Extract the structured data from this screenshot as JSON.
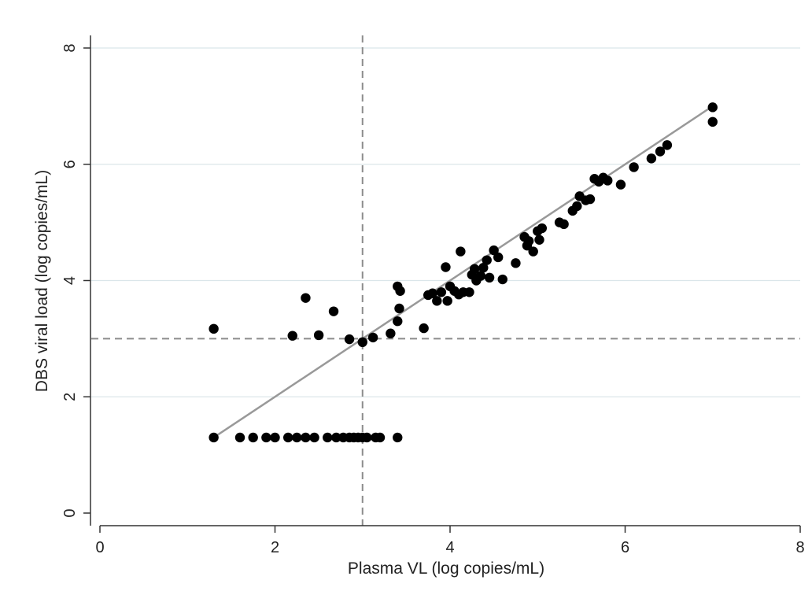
{
  "chart_data": {
    "type": "scatter",
    "xlabel": "Plasma VL (log copies/mL)",
    "ylabel": "DBS viral load (log copies/mL)",
    "xlim": [
      0,
      8
    ],
    "ylim": [
      0,
      8
    ],
    "xticks": [
      "0",
      "2",
      "4",
      "6",
      "8"
    ],
    "yticks": [
      "0",
      "2",
      "4",
      "6",
      "8"
    ],
    "grid": "horizontal",
    "reference_lines": {
      "x": 3,
      "y": 3,
      "style": "dashed"
    },
    "fit_line": {
      "from": [
        1.3,
        1.3
      ],
      "to": [
        7.0,
        7.0
      ]
    },
    "colors": {
      "points": "#000000",
      "fit": "#999999",
      "reference": "#8c8c8c",
      "grid": "#dbe6ea",
      "axis": "#333333"
    },
    "points": [
      [
        1.3,
        3.17
      ],
      [
        1.3,
        1.3
      ],
      [
        1.6,
        1.3
      ],
      [
        1.75,
        1.3
      ],
      [
        1.9,
        1.3
      ],
      [
        2.0,
        1.3
      ],
      [
        2.15,
        1.3
      ],
      [
        2.25,
        1.3
      ],
      [
        2.35,
        1.3
      ],
      [
        2.45,
        1.3
      ],
      [
        2.6,
        1.3
      ],
      [
        2.7,
        1.3
      ],
      [
        2.78,
        1.3
      ],
      [
        2.85,
        1.3
      ],
      [
        2.9,
        1.3
      ],
      [
        2.95,
        1.3
      ],
      [
        3.0,
        1.3
      ],
      [
        3.05,
        1.3
      ],
      [
        3.15,
        1.3
      ],
      [
        3.2,
        1.3
      ],
      [
        3.4,
        1.3
      ],
      [
        2.2,
        3.05
      ],
      [
        2.35,
        3.7
      ],
      [
        2.5,
        3.06
      ],
      [
        2.67,
        3.47
      ],
      [
        2.85,
        2.99
      ],
      [
        3.0,
        2.94
      ],
      [
        3.12,
        3.02
      ],
      [
        3.32,
        3.09
      ],
      [
        3.4,
        3.3
      ],
      [
        3.42,
        3.52
      ],
      [
        3.4,
        3.9
      ],
      [
        3.43,
        3.82
      ],
      [
        3.7,
        3.18
      ],
      [
        3.75,
        3.75
      ],
      [
        3.8,
        3.78
      ],
      [
        3.85,
        3.65
      ],
      [
        3.9,
        3.8
      ],
      [
        3.95,
        4.23
      ],
      [
        3.97,
        3.65
      ],
      [
        4.0,
        3.9
      ],
      [
        4.05,
        3.82
      ],
      [
        4.1,
        3.76
      ],
      [
        4.12,
        4.5
      ],
      [
        4.15,
        3.8
      ],
      [
        4.22,
        3.8
      ],
      [
        4.25,
        4.1
      ],
      [
        4.28,
        4.2
      ],
      [
        4.3,
        4.0
      ],
      [
        4.35,
        4.08
      ],
      [
        4.38,
        4.22
      ],
      [
        4.42,
        4.35
      ],
      [
        4.45,
        4.05
      ],
      [
        4.5,
        4.52
      ],
      [
        4.55,
        4.4
      ],
      [
        4.6,
        4.02
      ],
      [
        4.75,
        4.3
      ],
      [
        4.85,
        4.75
      ],
      [
        4.88,
        4.6
      ],
      [
        4.9,
        4.68
      ],
      [
        4.95,
        4.5
      ],
      [
        5.0,
        4.85
      ],
      [
        5.02,
        4.7
      ],
      [
        5.05,
        4.9
      ],
      [
        5.25,
        5.0
      ],
      [
        5.3,
        4.97
      ],
      [
        5.4,
        5.2
      ],
      [
        5.45,
        5.28
      ],
      [
        5.48,
        5.45
      ],
      [
        5.55,
        5.38
      ],
      [
        5.6,
        5.4
      ],
      [
        5.65,
        5.75
      ],
      [
        5.7,
        5.7
      ],
      [
        5.75,
        5.77
      ],
      [
        5.8,
        5.72
      ],
      [
        5.95,
        5.65
      ],
      [
        6.1,
        5.95
      ],
      [
        6.3,
        6.1
      ],
      [
        6.4,
        6.22
      ],
      [
        6.48,
        6.33
      ],
      [
        7.0,
        6.98
      ],
      [
        7.0,
        6.73
      ]
    ]
  }
}
